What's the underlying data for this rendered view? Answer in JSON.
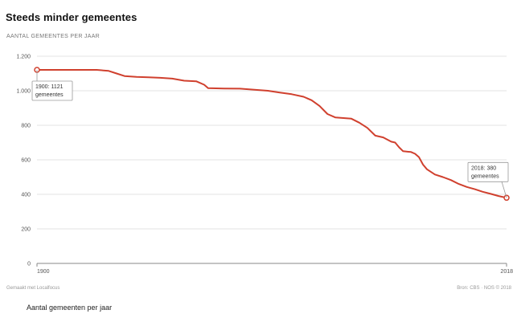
{
  "chart_data": {
    "type": "line",
    "title": "Steeds minder gemeentes",
    "subtitle": "AANTAL GEMEENTES PER JAAR",
    "xlabel": "",
    "ylabel": "",
    "xlim": [
      1900,
      2018
    ],
    "ylim": [
      0,
      1200
    ],
    "y_ticks": [
      {
        "value": 0,
        "label": "0"
      },
      {
        "value": 200,
        "label": "200"
      },
      {
        "value": 400,
        "label": "400"
      },
      {
        "value": 600,
        "label": "600"
      },
      {
        "value": 800,
        "label": "800"
      },
      {
        "value": 1000,
        "label": "1.000"
      },
      {
        "value": 1200,
        "label": "1.200"
      }
    ],
    "x_ticks": [
      {
        "value": 1900,
        "label": "1900"
      },
      {
        "value": 2018,
        "label": "2018"
      }
    ],
    "grid": true,
    "series": [
      {
        "color": "#d0402e",
        "points": [
          [
            1900,
            1121
          ],
          [
            1905,
            1121
          ],
          [
            1910,
            1121
          ],
          [
            1915,
            1121
          ],
          [
            1918,
            1115
          ],
          [
            1920,
            1100
          ],
          [
            1922,
            1085
          ],
          [
            1925,
            1080
          ],
          [
            1928,
            1078
          ],
          [
            1931,
            1075
          ],
          [
            1934,
            1070
          ],
          [
            1937,
            1058
          ],
          [
            1940,
            1055
          ],
          [
            1942,
            1035
          ],
          [
            1943,
            1015
          ],
          [
            1947,
            1013
          ],
          [
            1951,
            1012
          ],
          [
            1955,
            1005
          ],
          [
            1958,
            1000
          ],
          [
            1961,
            990
          ],
          [
            1964,
            980
          ],
          [
            1967,
            965
          ],
          [
            1969,
            945
          ],
          [
            1971,
            912
          ],
          [
            1973,
            865
          ],
          [
            1975,
            845
          ],
          [
            1977,
            842
          ],
          [
            1979,
            838
          ],
          [
            1981,
            815
          ],
          [
            1983,
            785
          ],
          [
            1985,
            740
          ],
          [
            1987,
            730
          ],
          [
            1989,
            705
          ],
          [
            1990,
            700
          ],
          [
            1991,
            672
          ],
          [
            1992,
            650
          ],
          [
            1994,
            645
          ],
          [
            1995,
            635
          ],
          [
            1996,
            615
          ],
          [
            1997,
            572
          ],
          [
            1998,
            545
          ],
          [
            2000,
            515
          ],
          [
            2002,
            500
          ],
          [
            2004,
            483
          ],
          [
            2006,
            460
          ],
          [
            2008,
            443
          ],
          [
            2010,
            430
          ],
          [
            2012,
            415
          ],
          [
            2014,
            403
          ],
          [
            2016,
            390
          ],
          [
            2018,
            380
          ]
        ]
      }
    ],
    "annotations": [
      {
        "x": 1900,
        "y": 1121,
        "lines": [
          "1900: 1121",
          "gemeentes"
        ]
      },
      {
        "x": 2018,
        "y": 380,
        "lines": [
          "2018: 380",
          "gemeentes"
        ]
      }
    ]
  },
  "footer": {
    "left": "Gemaakt met Localfocus",
    "right": "Bron: CBS · NOS © 2018"
  },
  "caption": "Aantal gemeenten per jaar",
  "colors": {
    "line": "#d0402e",
    "grid": "#e3e3e3",
    "axis": "#888888"
  }
}
